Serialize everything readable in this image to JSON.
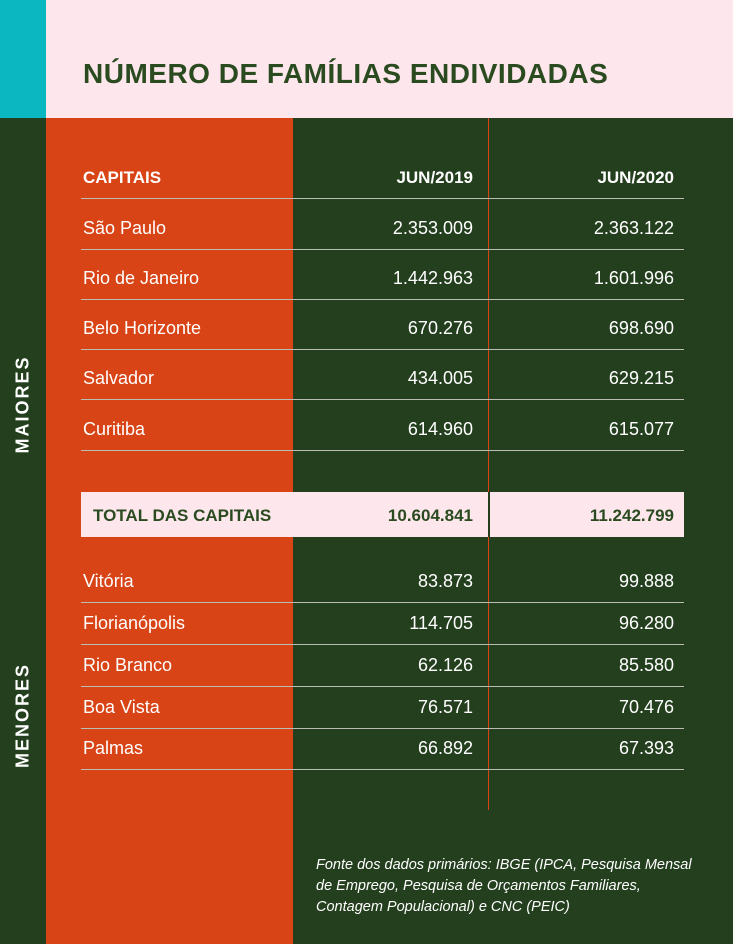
{
  "title": "NÚMERO DE FAMÍLIAS ENDIVIDADAS",
  "section_labels": {
    "maiores": "MAIORES",
    "menores": "MENORES"
  },
  "table": {
    "headers": [
      "CAPITAIS",
      "JUN/2019",
      "JUN/2020"
    ],
    "maiores": [
      {
        "city": "São Paulo",
        "jun2019": "2.353.009",
        "jun2020": "2.363.122"
      },
      {
        "city": "Rio de Janeiro",
        "jun2019": "1.442.963",
        "jun2020": "1.601.996"
      },
      {
        "city": "Belo Horizonte",
        "jun2019": "670.276",
        "jun2020": "698.690"
      },
      {
        "city": "Salvador",
        "jun2019": "434.005",
        "jun2020": "629.215"
      },
      {
        "city": "Curitiba",
        "jun2019": "614.960",
        "jun2020": "615.077"
      }
    ],
    "total": {
      "label": "TOTAL DAS CAPITAIS",
      "jun2019": "10.604.841",
      "jun2020": "11.242.799"
    },
    "menores": [
      {
        "city": "Vitória",
        "jun2019": "83.873",
        "jun2020": "99.888"
      },
      {
        "city": "Florianópolis",
        "jun2019": "114.705",
        "jun2020": "96.280"
      },
      {
        "city": "Rio Branco",
        "jun2019": "62.126",
        "jun2020": "85.580"
      },
      {
        "city": "Boa Vista",
        "jun2019": "76.571",
        "jun2020": "70.476"
      },
      {
        "city": "Palmas",
        "jun2019": "66.892",
        "jun2020": "67.393"
      }
    ]
  },
  "source": "Fonte dos dados primários: IBGE (IPCA, Pesquisa Mensal de Emprego, Pesquisa de Orçamentos Familiares, Contagem Populacional) e CNC (PEIC)",
  "colors": {
    "pink": "#fde6ec",
    "teal": "#0bb8c2",
    "green": "#233f1e",
    "red": "#d84415",
    "title": "#2a4a1f"
  }
}
